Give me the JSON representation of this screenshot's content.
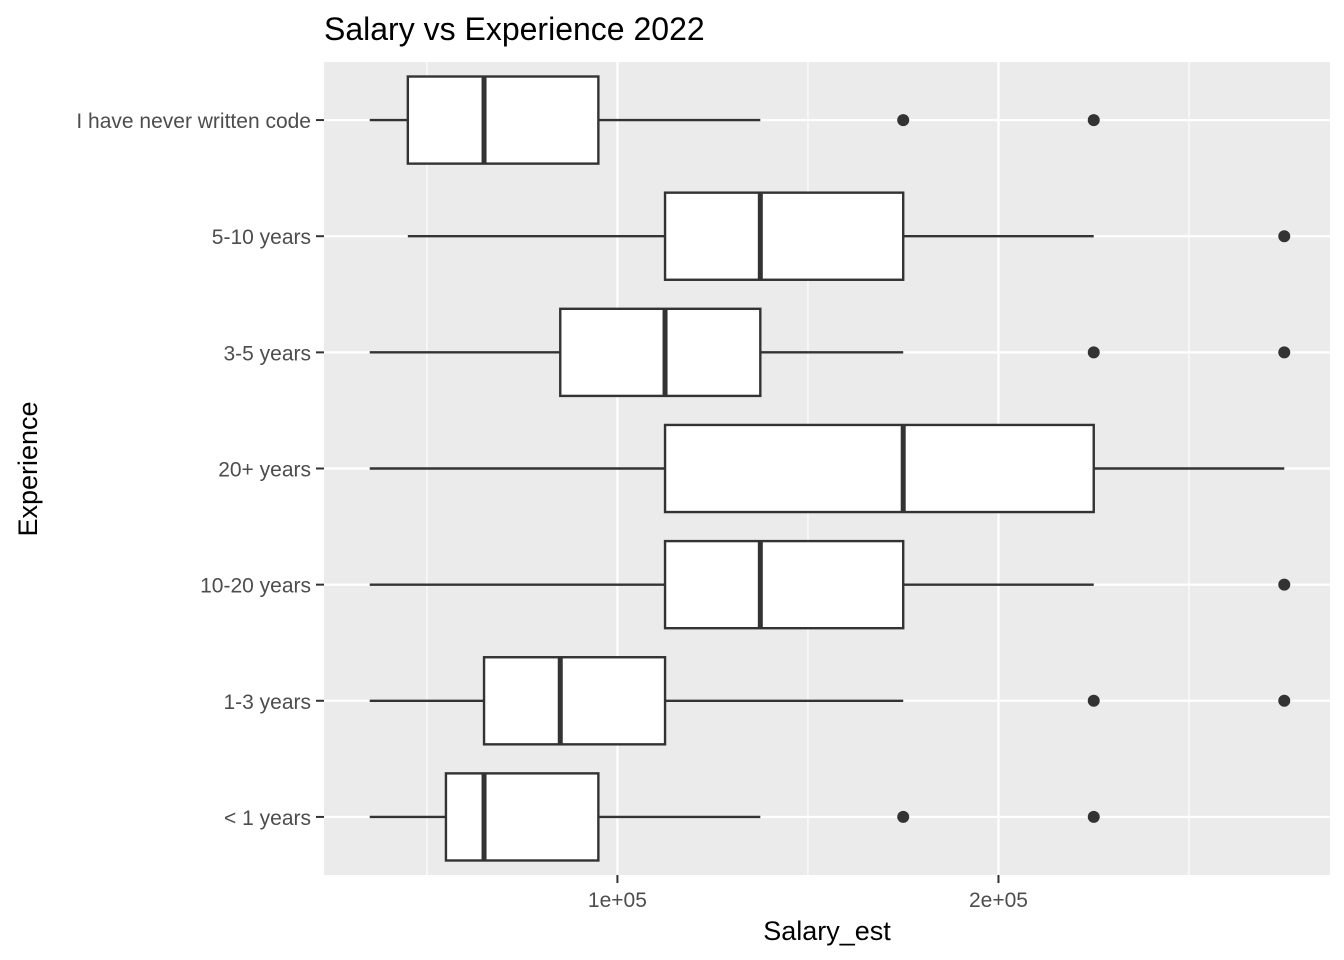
{
  "chart_data": {
    "type": "boxplot",
    "title": "Salary vs Experience 2022",
    "xlabel": "Salary_est",
    "ylabel": "Experience",
    "xlim": [
      23000,
      287000
    ],
    "x_ticks": [
      {
        "value": 100000,
        "label": "1e+05"
      },
      {
        "value": 200000,
        "label": "2e+05"
      }
    ],
    "x_minor_grid": [
      50000,
      150000,
      250000
    ],
    "grid": true,
    "orientation": "horizontal",
    "categories": [
      {
        "label": "I have never written code",
        "whisker_low": 35000,
        "q1": 45000,
        "median": 65000,
        "q3": 95000,
        "whisker_high": 137500,
        "outliers": [
          175000,
          225000
        ]
      },
      {
        "label": "5-10 years",
        "whisker_low": 45000,
        "q1": 112500,
        "median": 137500,
        "q3": 175000,
        "whisker_high": 225000,
        "outliers": [
          275000
        ]
      },
      {
        "label": "3-5 years",
        "whisker_low": 35000,
        "q1": 85000,
        "median": 112500,
        "q3": 137500,
        "whisker_high": 175000,
        "outliers": [
          225000,
          275000
        ]
      },
      {
        "label": "20+ years",
        "whisker_low": 35000,
        "q1": 112500,
        "median": 175000,
        "q3": 225000,
        "whisker_high": 275000,
        "outliers": []
      },
      {
        "label": "10-20 years",
        "whisker_low": 35000,
        "q1": 112500,
        "median": 137500,
        "q3": 175000,
        "whisker_high": 225000,
        "outliers": [
          275000
        ]
      },
      {
        "label": "1-3 years",
        "whisker_low": 35000,
        "q1": 65000,
        "median": 85000,
        "q3": 112500,
        "whisker_high": 175000,
        "outliers": [
          225000,
          275000
        ]
      },
      {
        "label": "< 1 years",
        "whisker_low": 35000,
        "q1": 55000,
        "median": 65000,
        "q3": 95000,
        "whisker_high": 137500,
        "outliers": [
          175000,
          225000
        ]
      }
    ],
    "colors": {
      "panel_background": "#ebebeb",
      "grid_major": "#ffffff",
      "box_fill": "#ffffff",
      "box_stroke": "#333333",
      "outlier": "#333333",
      "tick_text": "#4d4d4d",
      "tick_mark": "#333333"
    }
  }
}
